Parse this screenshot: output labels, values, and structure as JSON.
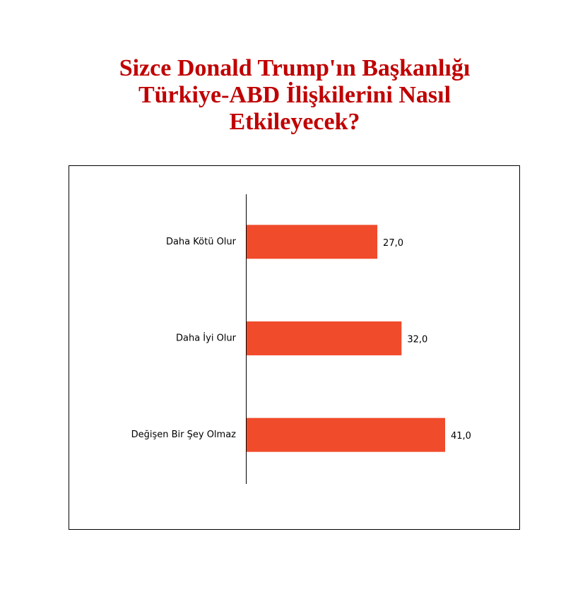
{
  "chart_data": {
    "type": "bar",
    "orientation": "horizontal",
    "title": "Sizce Donald Trump'ın Başkanlığı Türkiye-ABD İlişkilerini Nasıl Etkileyecek?",
    "categories": [
      "Daha Kötü Olur",
      "Daha İyi Olur",
      "Değişen Bir Şey Olmaz"
    ],
    "values": [
      27,
      32,
      41
    ],
    "value_labels": [
      "27,0",
      "32,0",
      "41,0"
    ],
    "color": "#f04b2b"
  }
}
